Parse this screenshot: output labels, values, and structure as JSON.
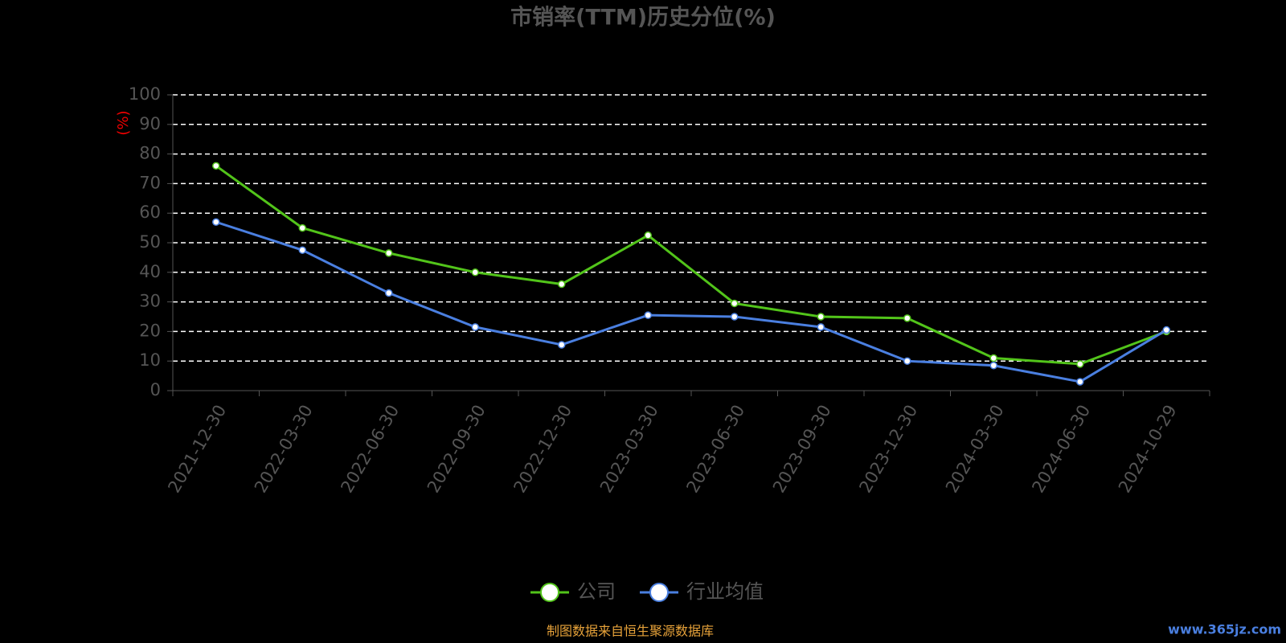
{
  "chart_data": {
    "type": "line",
    "title": "市销率(TTM)历史分位(%)",
    "y_label": "(%)",
    "categories": [
      "2021-12-30",
      "2022-03-30",
      "2022-06-30",
      "2022-09-30",
      "2022-12-30",
      "2023-03-30",
      "2023-06-30",
      "2023-09-30",
      "2023-12-30",
      "2024-03-30",
      "2024-06-30",
      "2024-10-29"
    ],
    "series": [
      {
        "name": "公司",
        "color": "#52c41a",
        "values": [
          76,
          55,
          46.5,
          40,
          36,
          52.5,
          29.5,
          25,
          24.5,
          11,
          9,
          20
        ]
      },
      {
        "name": "行业均值",
        "color": "#4a7fe0",
        "values": [
          57,
          47.5,
          33,
          21.5,
          15.5,
          25.5,
          25,
          21.5,
          10,
          8.5,
          3,
          20.5
        ]
      }
    ],
    "ylim": [
      0,
      100
    ],
    "yticks": [
      0,
      10,
      20,
      30,
      40,
      50,
      60,
      70,
      80,
      90,
      100
    ],
    "grid": true,
    "legend": "bottom",
    "source": "制图数据来自恒生聚源数据库",
    "watermark": "www.365jz.com"
  }
}
